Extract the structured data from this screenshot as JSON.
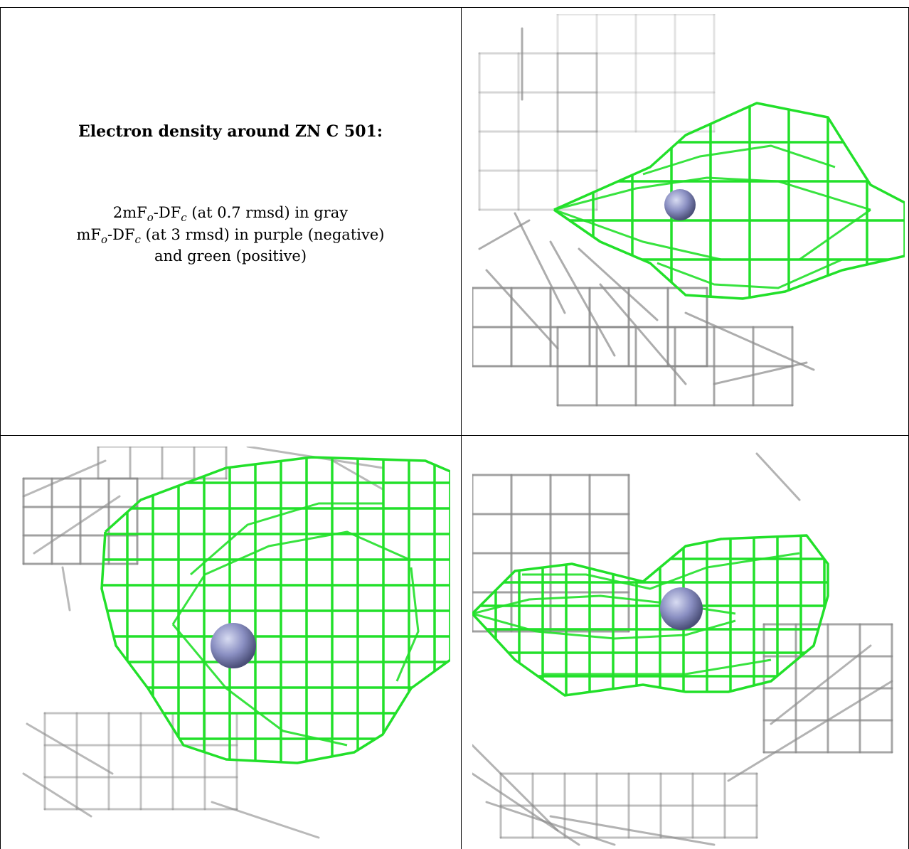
{
  "caption": {
    "title": "Electron density around ZN C 501:",
    "line1": {
      "prefix": "2mF",
      "sub1": "o",
      "mid": "-DF",
      "sub2": "c",
      "suffix": " (at 0.7 rmsd) in gray"
    },
    "line2": {
      "prefix": "mF",
      "sub1": "o",
      "mid": "-DF",
      "sub2": "c",
      "suffix": " (at 3 rmsd) in purple (negative)"
    },
    "line3": "and green (positive)"
  },
  "colors": {
    "positive_mesh": "#22e02a",
    "gray_mesh": "#8a8a8a",
    "zinc_atom": "#8a8fc2"
  },
  "panels": [
    {
      "name": "view-top-right"
    },
    {
      "name": "view-bottom-left"
    },
    {
      "name": "view-bottom-right"
    }
  ]
}
